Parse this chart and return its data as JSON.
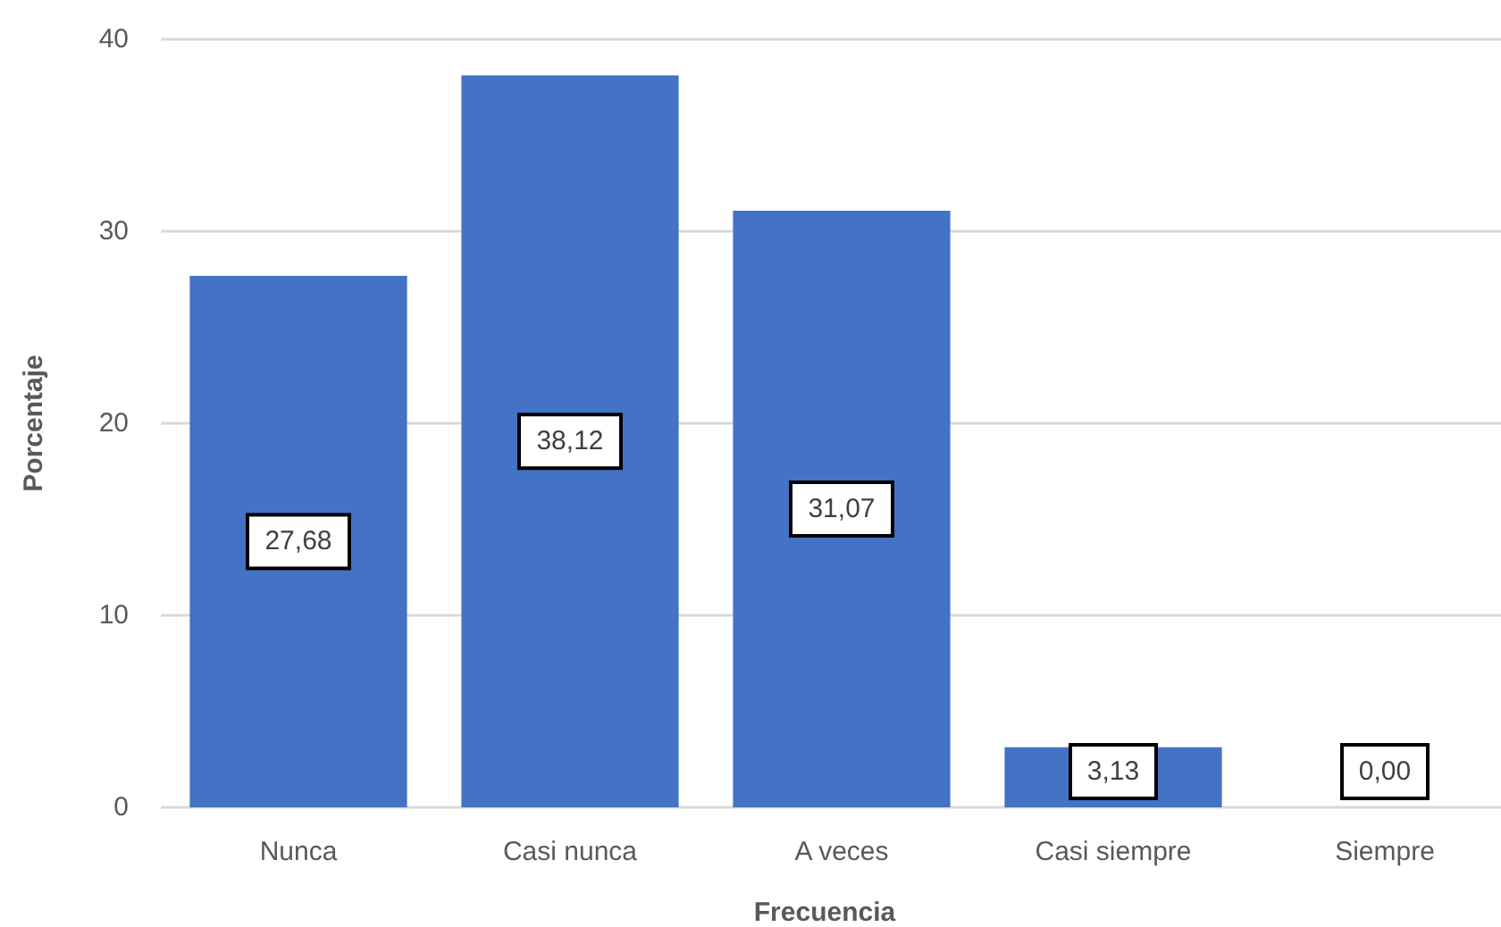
{
  "chart_data": {
    "type": "bar",
    "xlabel": "Frecuencia",
    "ylabel": "Porcentaje",
    "categories": [
      "Nunca",
      "Casi nunca",
      "A veces",
      "Casi siempre",
      "Siempre"
    ],
    "values": [
      27.68,
      38.12,
      31.07,
      3.13,
      0.0
    ],
    "value_labels": [
      "27,68",
      "38,12",
      "31,07",
      "3,13",
      "0,00"
    ],
    "color": "#4472c4",
    "ylim": [
      0,
      40
    ],
    "yticks": [
      0,
      10,
      20,
      30,
      40
    ],
    "grid": "y"
  }
}
